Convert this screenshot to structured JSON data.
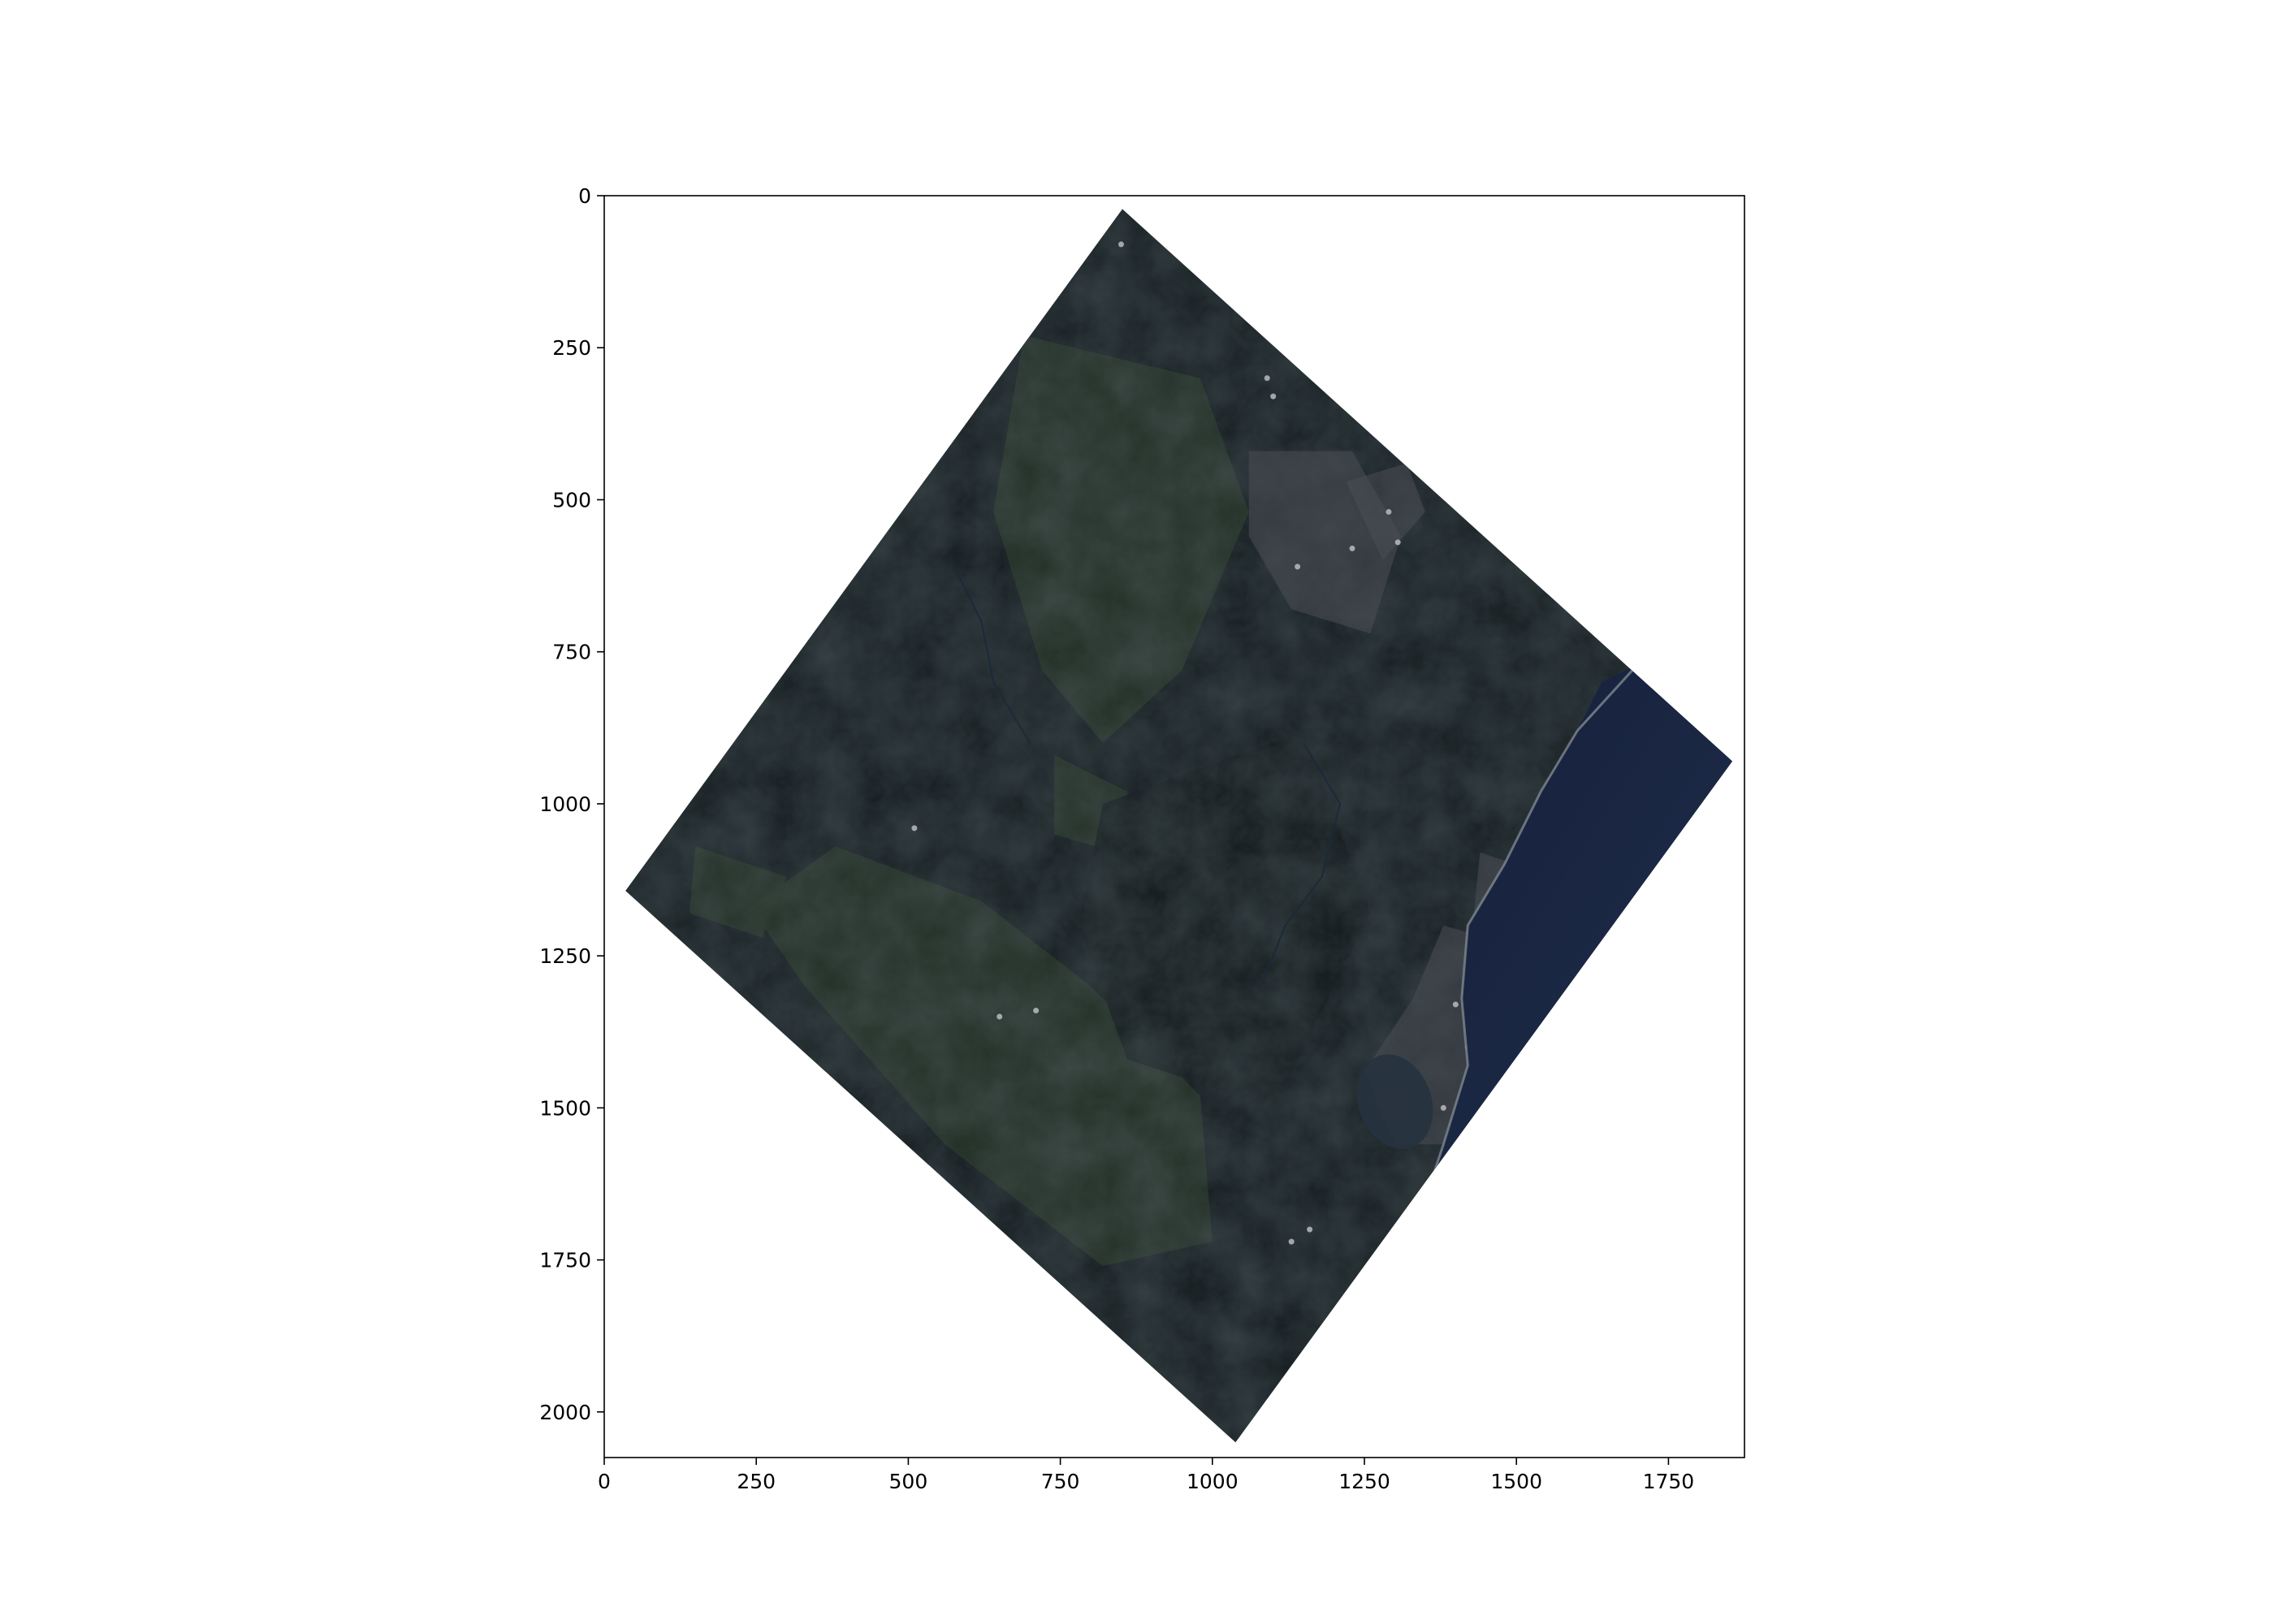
{
  "figure": {
    "x_ticks": [
      0,
      250,
      500,
      750,
      1000,
      1250,
      1500,
      1750
    ],
    "y_ticks": [
      0,
      250,
      500,
      750,
      1000,
      1250,
      1500,
      1750,
      2000
    ],
    "x_range": [
      0,
      1875
    ],
    "y_range": [
      0,
      2075
    ],
    "x_tick_labels": [
      "0",
      "250",
      "500",
      "750",
      "1000",
      "1250",
      "1500",
      "1750"
    ],
    "y_tick_labels": [
      "0",
      "250",
      "500",
      "750",
      "1000",
      "1250",
      "1500",
      "1750",
      "2000"
    ]
  },
  "image": {
    "content": "rotated satellite scene: forested terrain, urban areas and coastline with ocean",
    "footprint_corners": [
      [
        852,
        22
      ],
      [
        1855,
        930
      ],
      [
        1038,
        2050
      ],
      [
        35,
        1143
      ]
    ],
    "colors": {
      "forest_dark": "#141b1f",
      "forest_green": "#253326",
      "urban": "#4a4e55",
      "ocean": "#1b2844",
      "coast": "#7e8790"
    }
  }
}
